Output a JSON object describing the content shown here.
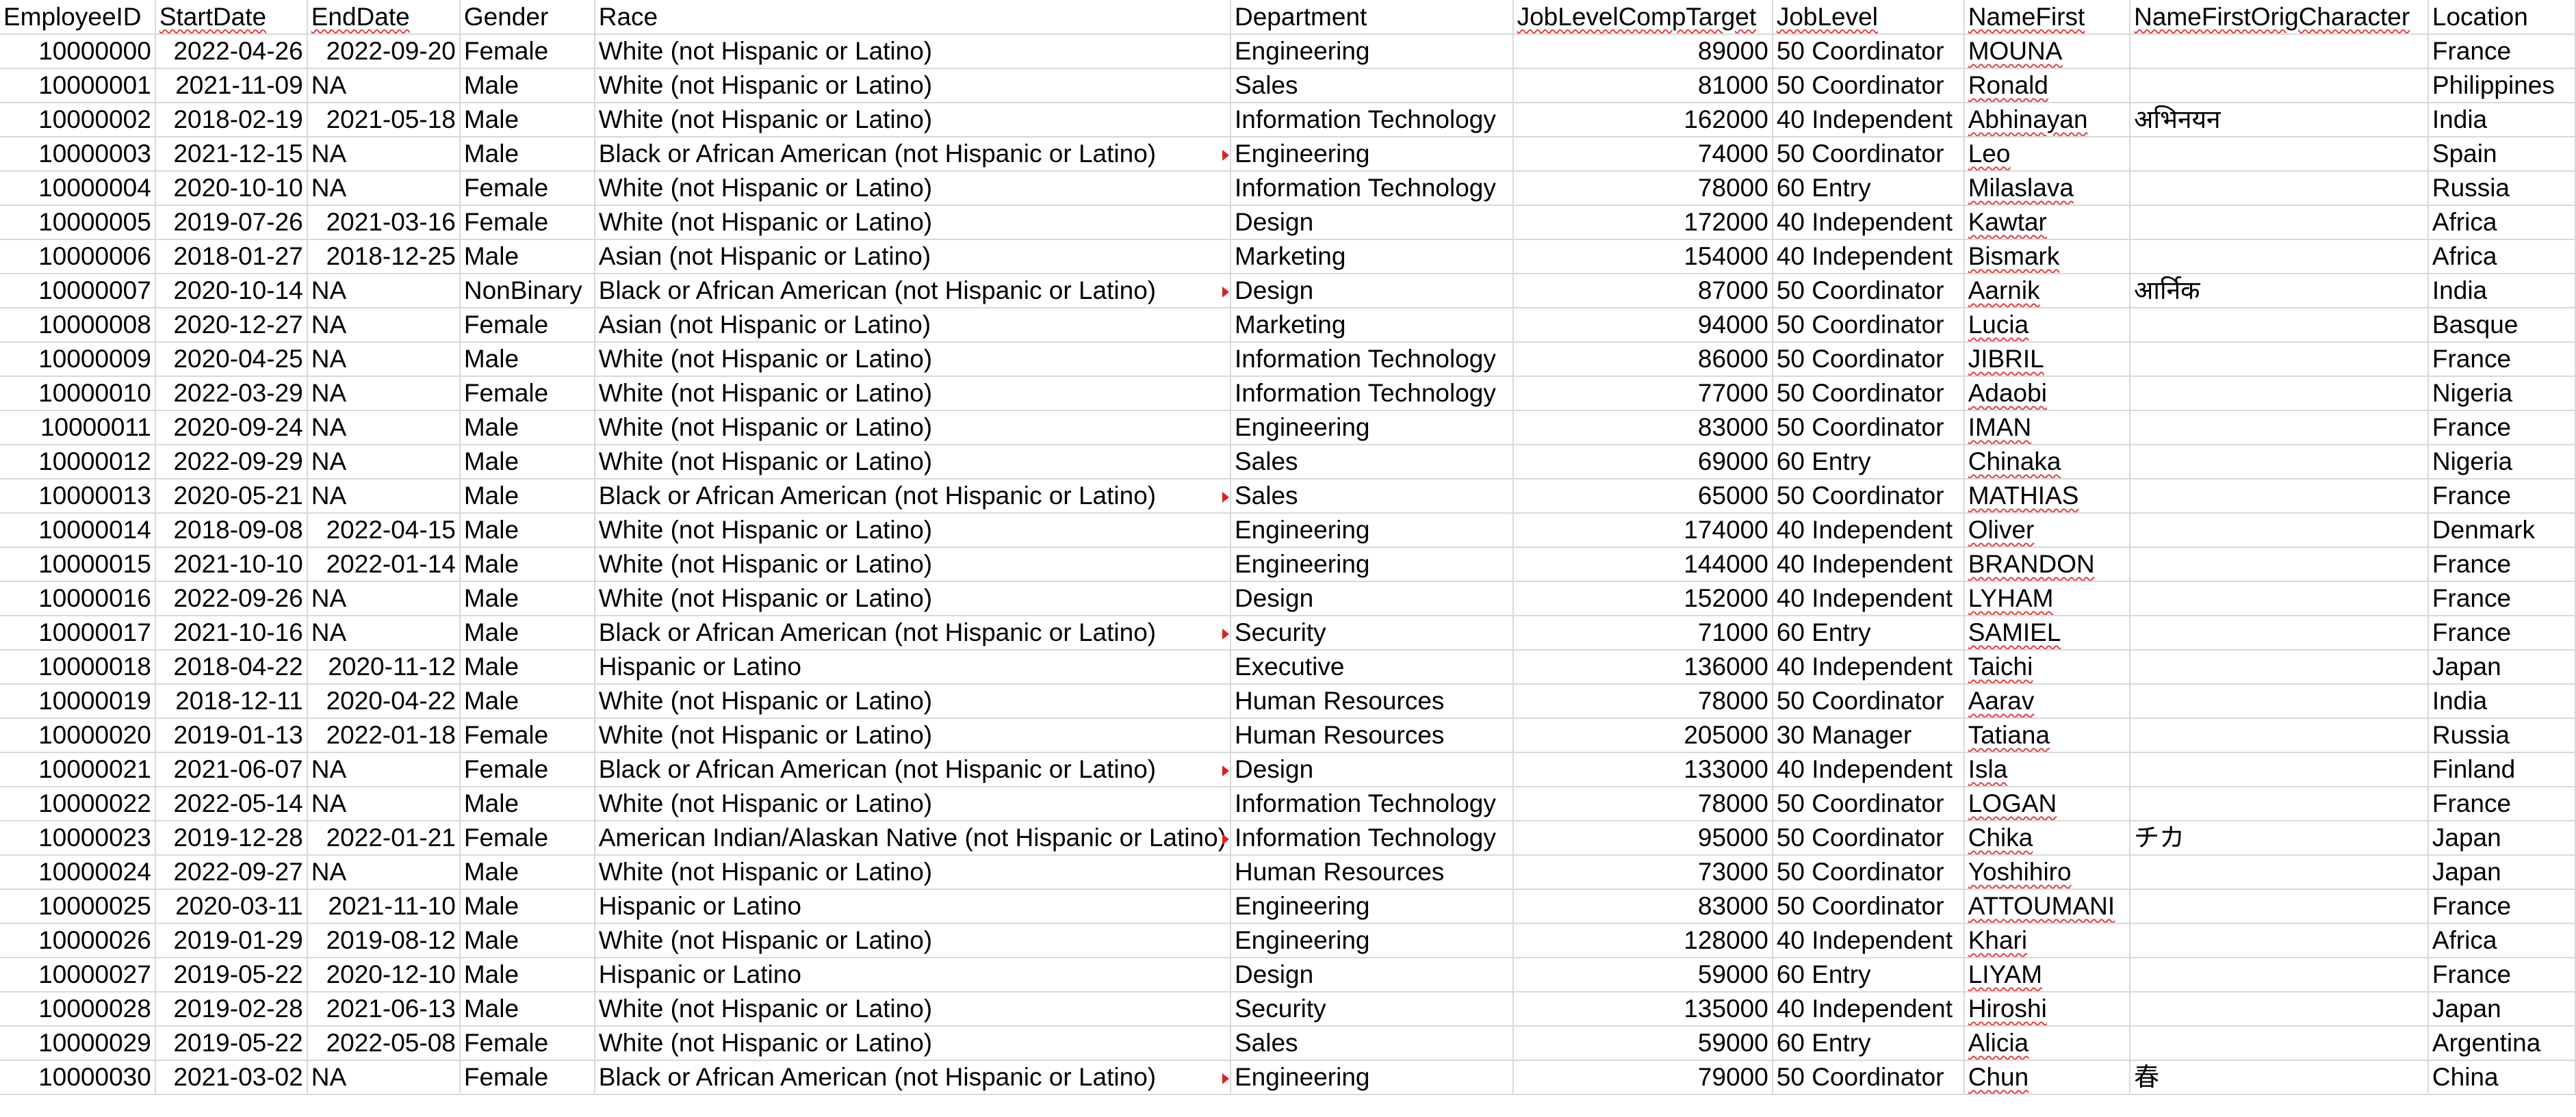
{
  "columns": [
    {
      "key": "id",
      "label": "EmployeeID",
      "align": "num"
    },
    {
      "key": "start",
      "label": "StartDate",
      "align": "num"
    },
    {
      "key": "end",
      "label": "EndDate",
      "align": "num"
    },
    {
      "key": "gender",
      "label": "Gender",
      "align": "txt"
    },
    {
      "key": "race",
      "label": "Race",
      "align": "txt"
    },
    {
      "key": "dept",
      "label": "Department",
      "align": "txt"
    },
    {
      "key": "comp",
      "label": "JobLevelCompTarget",
      "align": "num"
    },
    {
      "key": "level",
      "label": "JobLevel",
      "align": "txt"
    },
    {
      "key": "first",
      "label": "NameFirst",
      "align": "txt"
    },
    {
      "key": "orig",
      "label": "NameFirstOrigCharacter",
      "align": "txt"
    },
    {
      "key": "loc",
      "label": "Location",
      "align": "txt"
    }
  ],
  "rows": [
    {
      "id": "10000000",
      "start": "2022-04-26",
      "end": "2022-09-20",
      "gender": "Female",
      "race": "White (not Hispanic or Latino)",
      "dept": "Engineering",
      "comp": "89000",
      "level": "50 Coordinator",
      "first": "MOUNA",
      "orig": "",
      "loc": "France"
    },
    {
      "id": "10000001",
      "start": "2021-11-09",
      "end": "NA",
      "gender": "Male",
      "race": "White (not Hispanic or Latino)",
      "dept": "Sales",
      "comp": "81000",
      "level": "50 Coordinator",
      "first": "Ronald",
      "orig": "",
      "loc": "Philippines"
    },
    {
      "id": "10000002",
      "start": "2018-02-19",
      "end": "2021-05-18",
      "gender": "Male",
      "race": "White (not Hispanic or Latino)",
      "dept": "Information Technology",
      "comp": "162000",
      "level": "40 Independent",
      "first": "Abhinayan",
      "orig": "अभिनयन",
      "loc": "India"
    },
    {
      "id": "10000003",
      "start": "2021-12-15",
      "end": "NA",
      "gender": "Male",
      "race": "Black or African American (not Hispanic or Latino)",
      "dept": "Engineering",
      "comp": "74000",
      "level": "50 Coordinator",
      "first": "Leo",
      "orig": "",
      "loc": "Spain"
    },
    {
      "id": "10000004",
      "start": "2020-10-10",
      "end": "NA",
      "gender": "Female",
      "race": "White (not Hispanic or Latino)",
      "dept": "Information Technology",
      "comp": "78000",
      "level": "60 Entry",
      "first": "Milaslava",
      "orig": "",
      "loc": "Russia"
    },
    {
      "id": "10000005",
      "start": "2019-07-26",
      "end": "2021-03-16",
      "gender": "Female",
      "race": "White (not Hispanic or Latino)",
      "dept": "Design",
      "comp": "172000",
      "level": "40 Independent",
      "first": "Kawtar",
      "orig": "",
      "loc": "Africa"
    },
    {
      "id": "10000006",
      "start": "2018-01-27",
      "end": "2018-12-25",
      "gender": "Male",
      "race": "Asian (not Hispanic or Latino)",
      "dept": "Marketing",
      "comp": "154000",
      "level": "40 Independent",
      "first": "Bismark",
      "orig": "",
      "loc": "Africa"
    },
    {
      "id": "10000007",
      "start": "2020-10-14",
      "end": "NA",
      "gender": "NonBinary",
      "race": "Black or African American (not Hispanic or Latino)",
      "dept": "Design",
      "comp": "87000",
      "level": "50 Coordinator",
      "first": "Aarnik",
      "orig": "आर्निक",
      "loc": "India"
    },
    {
      "id": "10000008",
      "start": "2020-12-27",
      "end": "NA",
      "gender": "Female",
      "race": "Asian (not Hispanic or Latino)",
      "dept": "Marketing",
      "comp": "94000",
      "level": "50 Coordinator",
      "first": "Lucia",
      "orig": "",
      "loc": "Basque"
    },
    {
      "id": "10000009",
      "start": "2020-04-25",
      "end": "NA",
      "gender": "Male",
      "race": "White (not Hispanic or Latino)",
      "dept": "Information Technology",
      "comp": "86000",
      "level": "50 Coordinator",
      "first": "JIBRIL",
      "orig": "",
      "loc": "France"
    },
    {
      "id": "10000010",
      "start": "2022-03-29",
      "end": "NA",
      "gender": "Female",
      "race": "White (not Hispanic or Latino)",
      "dept": "Information Technology",
      "comp": "77000",
      "level": "50 Coordinator",
      "first": "Adaobi",
      "orig": "",
      "loc": "Nigeria"
    },
    {
      "id": "10000011",
      "start": "2020-09-24",
      "end": "NA",
      "gender": "Male",
      "race": "White (not Hispanic or Latino)",
      "dept": "Engineering",
      "comp": "83000",
      "level": "50 Coordinator",
      "first": "IMAN",
      "orig": "",
      "loc": "France"
    },
    {
      "id": "10000012",
      "start": "2022-09-29",
      "end": "NA",
      "gender": "Male",
      "race": "White (not Hispanic or Latino)",
      "dept": "Sales",
      "comp": "69000",
      "level": "60 Entry",
      "first": "Chinaka",
      "orig": "",
      "loc": "Nigeria"
    },
    {
      "id": "10000013",
      "start": "2020-05-21",
      "end": "NA",
      "gender": "Male",
      "race": "Black or African American (not Hispanic or Latino)",
      "dept": "Sales",
      "comp": "65000",
      "level": "50 Coordinator",
      "first": "MATHIAS",
      "orig": "",
      "loc": "France"
    },
    {
      "id": "10000014",
      "start": "2018-09-08",
      "end": "2022-04-15",
      "gender": "Male",
      "race": "White (not Hispanic or Latino)",
      "dept": "Engineering",
      "comp": "174000",
      "level": "40 Independent",
      "first": "Oliver",
      "orig": "",
      "loc": "Denmark"
    },
    {
      "id": "10000015",
      "start": "2021-10-10",
      "end": "2022-01-14",
      "gender": "Male",
      "race": "White (not Hispanic or Latino)",
      "dept": "Engineering",
      "comp": "144000",
      "level": "40 Independent",
      "first": "BRANDON",
      "orig": "",
      "loc": "France"
    },
    {
      "id": "10000016",
      "start": "2022-09-26",
      "end": "NA",
      "gender": "Male",
      "race": "White (not Hispanic or Latino)",
      "dept": "Design",
      "comp": "152000",
      "level": "40 Independent",
      "first": "LYHAM",
      "orig": "",
      "loc": "France"
    },
    {
      "id": "10000017",
      "start": "2021-10-16",
      "end": "NA",
      "gender": "Male",
      "race": "Black or African American (not Hispanic or Latino)",
      "dept": "Security",
      "comp": "71000",
      "level": "60 Entry",
      "first": "SAMIEL",
      "orig": "",
      "loc": "France"
    },
    {
      "id": "10000018",
      "start": "2018-04-22",
      "end": "2020-11-12",
      "gender": "Male",
      "race": "Hispanic or Latino",
      "dept": "Executive",
      "comp": "136000",
      "level": "40 Independent",
      "first": "Taichi",
      "orig": "",
      "loc": "Japan"
    },
    {
      "id": "10000019",
      "start": "2018-12-11",
      "end": "2020-04-22",
      "gender": "Male",
      "race": "White (not Hispanic or Latino)",
      "dept": "Human Resources",
      "comp": "78000",
      "level": "50 Coordinator",
      "first": "Aarav",
      "orig": "",
      "loc": "India"
    },
    {
      "id": "10000020",
      "start": "2019-01-13",
      "end": "2022-01-18",
      "gender": "Female",
      "race": "White (not Hispanic or Latino)",
      "dept": "Human Resources",
      "comp": "205000",
      "level": "30 Manager",
      "first": "Tatiana",
      "orig": "",
      "loc": "Russia"
    },
    {
      "id": "10000021",
      "start": "2021-06-07",
      "end": "NA",
      "gender": "Female",
      "race": "Black or African American (not Hispanic or Latino)",
      "dept": "Design",
      "comp": "133000",
      "level": "40 Independent",
      "first": "Isla",
      "orig": "",
      "loc": "Finland"
    },
    {
      "id": "10000022",
      "start": "2022-05-14",
      "end": "NA",
      "gender": "Male",
      "race": "White (not Hispanic or Latino)",
      "dept": "Information Technology",
      "comp": "78000",
      "level": "50 Coordinator",
      "first": "LOGAN",
      "orig": "",
      "loc": "France"
    },
    {
      "id": "10000023",
      "start": "2019-12-28",
      "end": "2022-01-21",
      "gender": "Female",
      "race": "American Indian/Alaskan Native (not Hispanic or Latino)",
      "dept": "Information Technology",
      "comp": "95000",
      "level": "50 Coordinator",
      "first": "Chika",
      "orig": "チカ",
      "loc": "Japan"
    },
    {
      "id": "10000024",
      "start": "2022-09-27",
      "end": "NA",
      "gender": "Male",
      "race": "White (not Hispanic or Latino)",
      "dept": "Human Resources",
      "comp": "73000",
      "level": "50 Coordinator",
      "first": "Yoshihiro",
      "orig": "",
      "loc": "Japan"
    },
    {
      "id": "10000025",
      "start": "2020-03-11",
      "end": "2021-11-10",
      "gender": "Male",
      "race": "Hispanic or Latino",
      "dept": "Engineering",
      "comp": "83000",
      "level": "50 Coordinator",
      "first": "ATTOUMANI",
      "orig": "",
      "loc": "France"
    },
    {
      "id": "10000026",
      "start": "2019-01-29",
      "end": "2019-08-12",
      "gender": "Male",
      "race": "White (not Hispanic or Latino)",
      "dept": "Engineering",
      "comp": "128000",
      "level": "40 Independent",
      "first": "Khari",
      "orig": "",
      "loc": "Africa"
    },
    {
      "id": "10000027",
      "start": "2019-05-22",
      "end": "2020-12-10",
      "gender": "Male",
      "race": "Hispanic or Latino",
      "dept": "Design",
      "comp": "59000",
      "level": "60 Entry",
      "first": "LIYAM",
      "orig": "",
      "loc": "France"
    },
    {
      "id": "10000028",
      "start": "2019-02-28",
      "end": "2021-06-13",
      "gender": "Male",
      "race": "White (not Hispanic or Latino)",
      "dept": "Security",
      "comp": "135000",
      "level": "40 Independent",
      "first": "Hiroshi",
      "orig": "",
      "loc": "Japan"
    },
    {
      "id": "10000029",
      "start": "2019-05-22",
      "end": "2022-05-08",
      "gender": "Female",
      "race": "White (not Hispanic or Latino)",
      "dept": "Sales",
      "comp": "59000",
      "level": "60 Entry",
      "first": "Alicia",
      "orig": "",
      "loc": "Argentina"
    },
    {
      "id": "10000030",
      "start": "2021-03-02",
      "end": "NA",
      "gender": "Female",
      "race": "Black or African American (not Hispanic or Latino)",
      "dept": "Engineering",
      "comp": "79000",
      "level": "50 Coordinator",
      "first": "Chun",
      "orig": "春",
      "loc": "China"
    }
  ]
}
